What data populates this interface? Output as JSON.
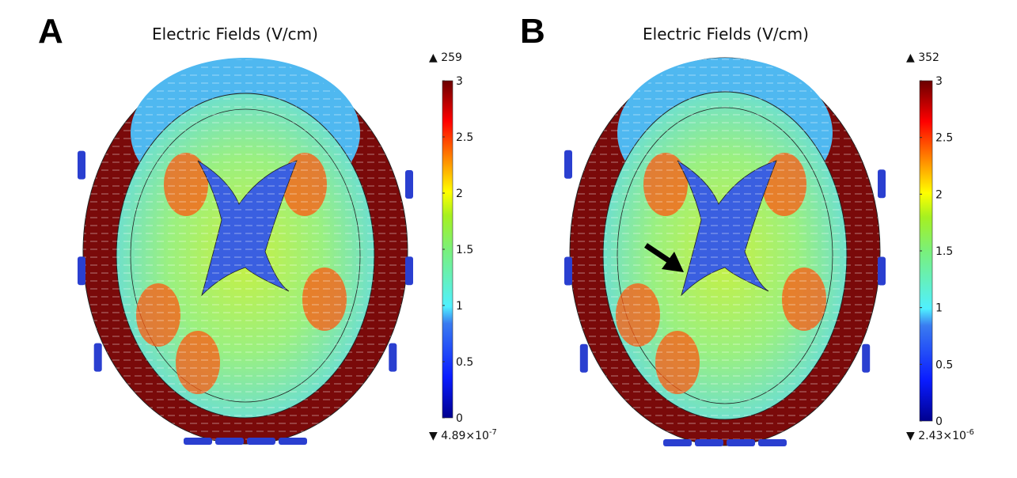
{
  "colors": {
    "scalp": "#7a0a0a",
    "ventricle": "#3a5fe0",
    "tissue": "#6fe7d8",
    "electrode": "#2a3fd0",
    "arrow": "#000000"
  },
  "chart_data": [
    {
      "type": "heatmap",
      "panel_label": "A",
      "title": "Electric Fields (V/cm)",
      "colorbar": {
        "range": [
          0,
          3
        ],
        "ticks": [
          "3",
          "2.5",
          "2",
          "1.5",
          "1",
          "0.5",
          "0"
        ],
        "colormap": "jet",
        "max_label": "259",
        "min_label": "4.89×10",
        "min_exp": "-7"
      },
      "has_arrow": false
    },
    {
      "type": "heatmap",
      "panel_label": "B",
      "title": "Electric Fields (V/cm)",
      "colorbar": {
        "range": [
          0,
          3
        ],
        "ticks": [
          "3",
          "2.5",
          "2",
          "1.5",
          "1",
          "0.5",
          "0"
        ],
        "colormap": "jet",
        "max_label": "352",
        "min_label": "2.43×10",
        "min_exp": "-6"
      },
      "has_arrow": true
    }
  ]
}
